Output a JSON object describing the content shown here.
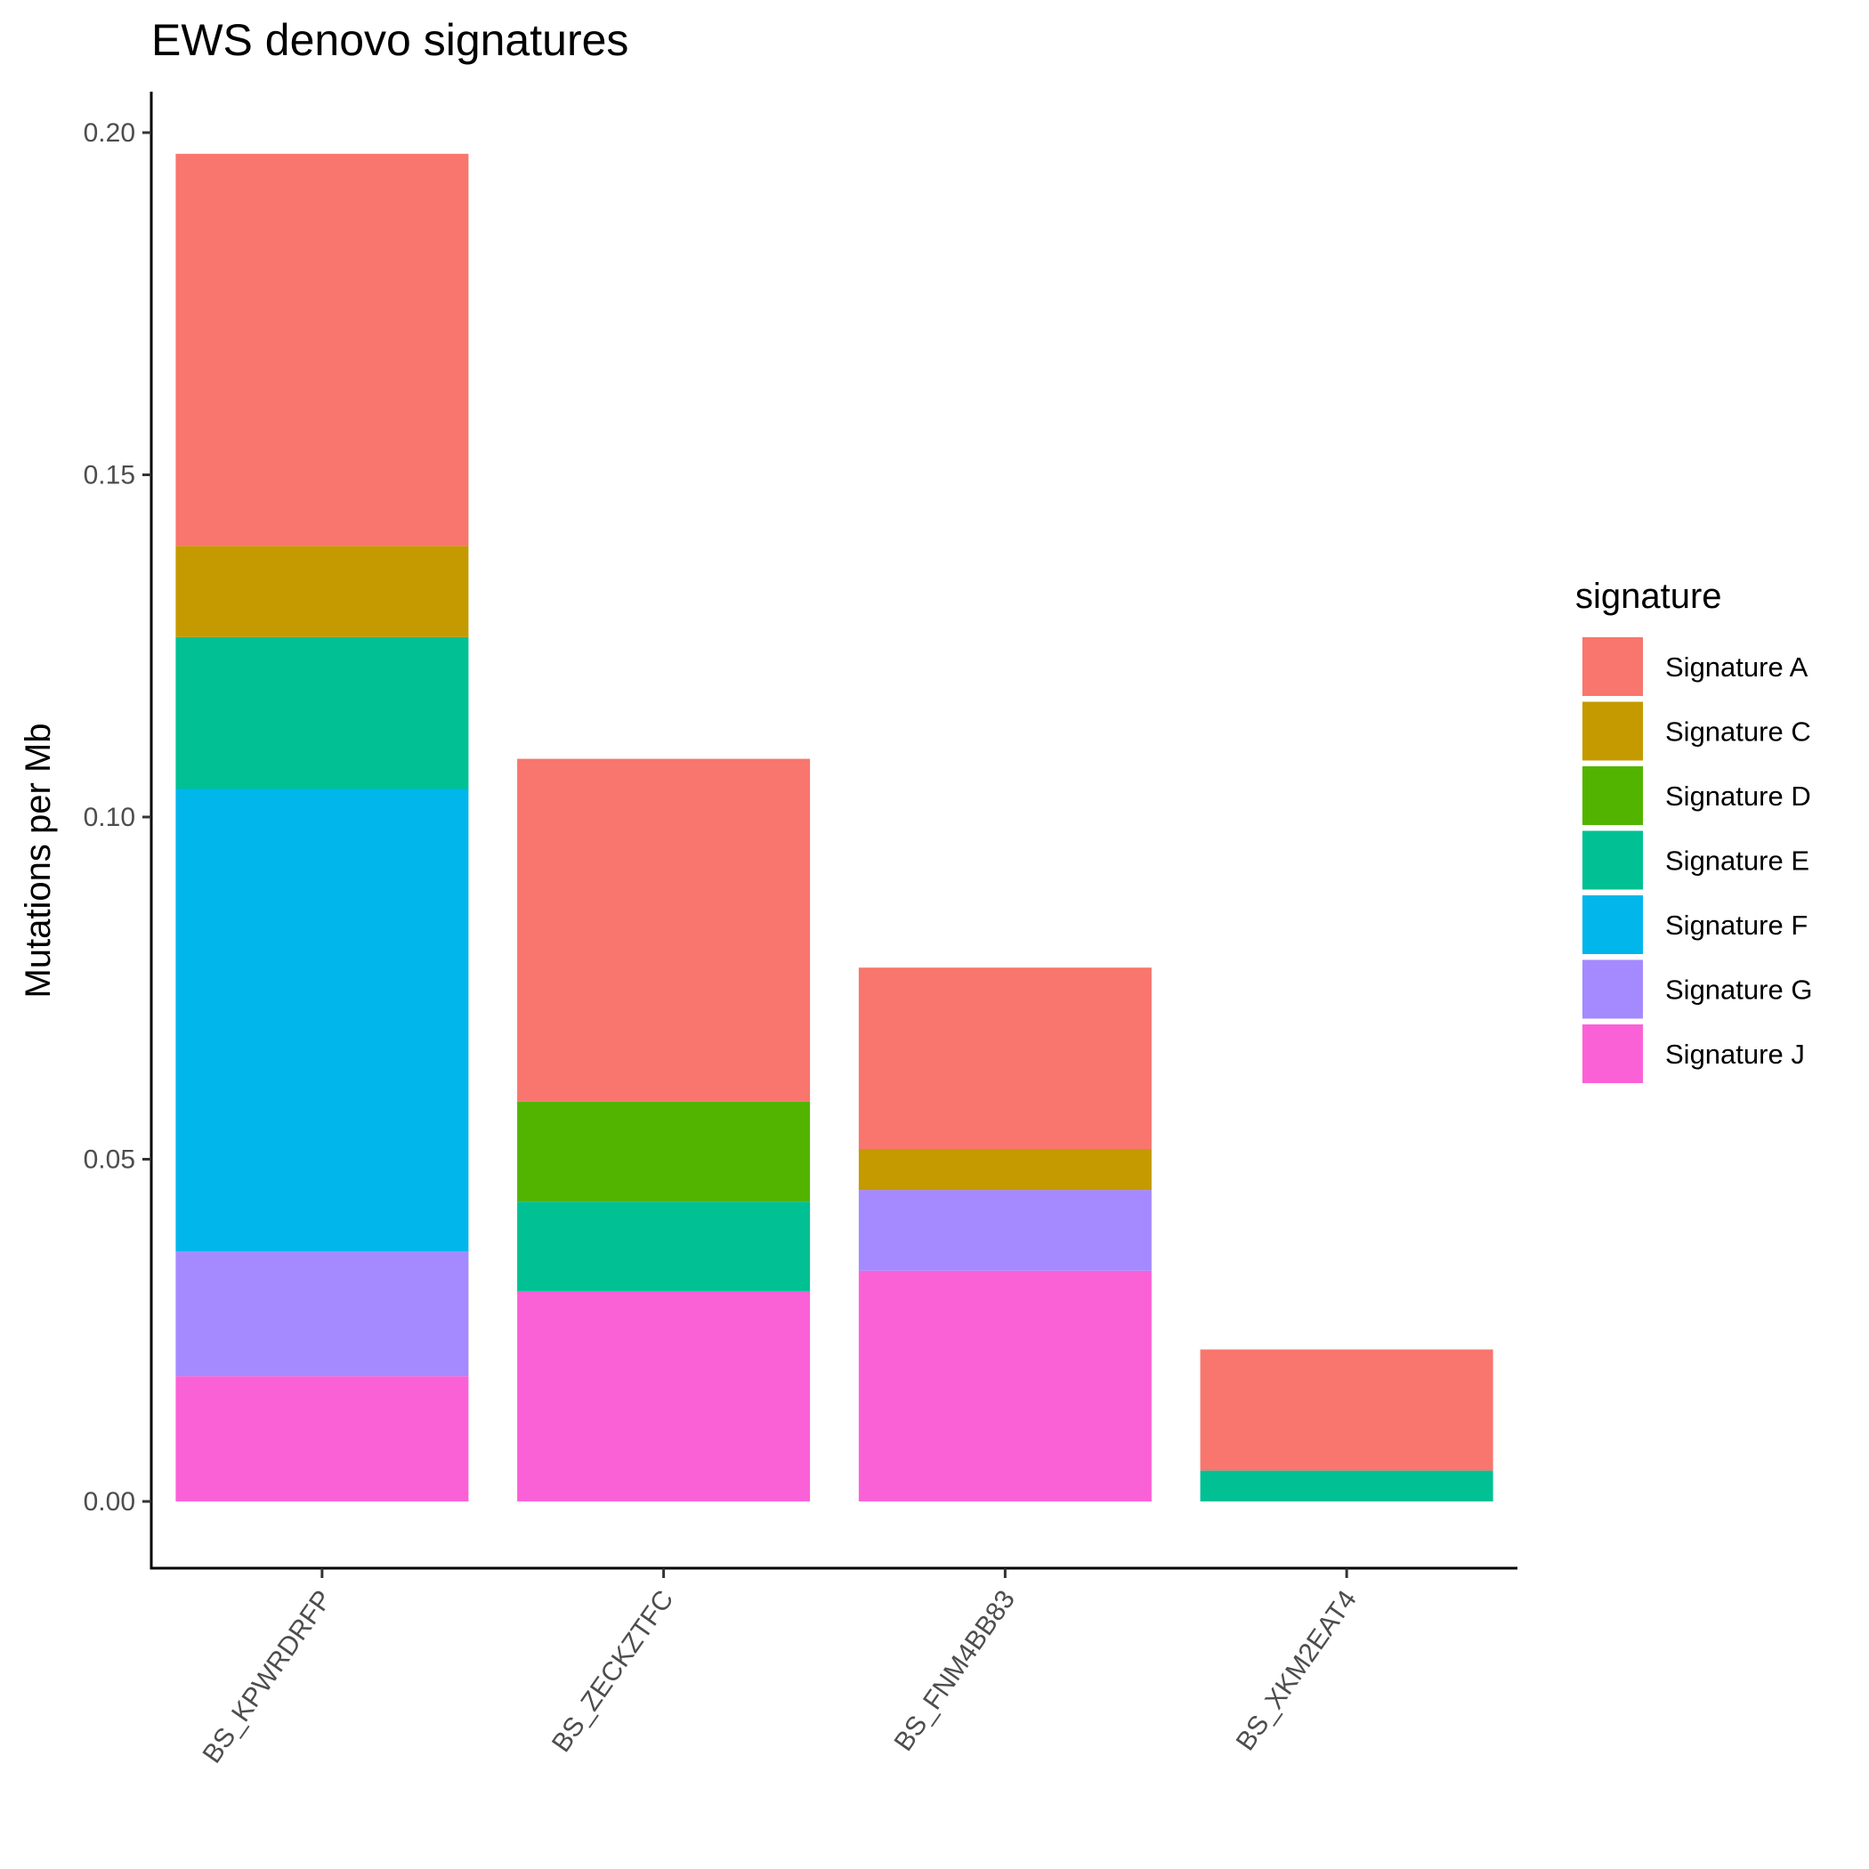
{
  "chart_data": {
    "type": "bar",
    "stacked": true,
    "title": "EWS denovo signatures",
    "xlabel": "",
    "ylabel": "Mutations per Mb",
    "ylim": [
      -0.0095,
      0.206
    ],
    "yticks": [
      "0.00",
      "0.05",
      "0.10",
      "0.15",
      "0.20"
    ],
    "grid": false,
    "legend_title": "signature",
    "legend_position": "right",
    "categories": [
      "BS_KPWRDRFP",
      "BS_ZECKZTFC",
      "BS_FNM4BB83",
      "BS_XKM2EAT4"
    ],
    "series": [
      {
        "name": "Signature J",
        "color": "#FB61D7",
        "values": [
          0.0183,
          0.0307,
          0.0337,
          0.0
        ]
      },
      {
        "name": "Signature G",
        "color": "#A58AFF",
        "values": [
          0.0182,
          0.0,
          0.0118,
          0.0
        ]
      },
      {
        "name": "Signature F",
        "color": "#00B6EB",
        "values": [
          0.0676,
          0.0,
          0.0,
          0.0
        ]
      },
      {
        "name": "Signature E",
        "color": "#00C094",
        "values": [
          0.0222,
          0.0131,
          0.0,
          0.0045
        ]
      },
      {
        "name": "Signature D",
        "color": "#53B400",
        "values": [
          0.0,
          0.0146,
          0.0,
          0.0
        ]
      },
      {
        "name": "Signature C",
        "color": "#C49A00",
        "values": [
          0.0133,
          0.0,
          0.006,
          0.0
        ]
      },
      {
        "name": "Signature A",
        "color": "#F8766D",
        "values": [
          0.0573,
          0.0501,
          0.0265,
          0.0177
        ]
      }
    ],
    "legend_order": [
      "Signature A",
      "Signature C",
      "Signature D",
      "Signature E",
      "Signature F",
      "Signature G",
      "Signature J"
    ]
  }
}
